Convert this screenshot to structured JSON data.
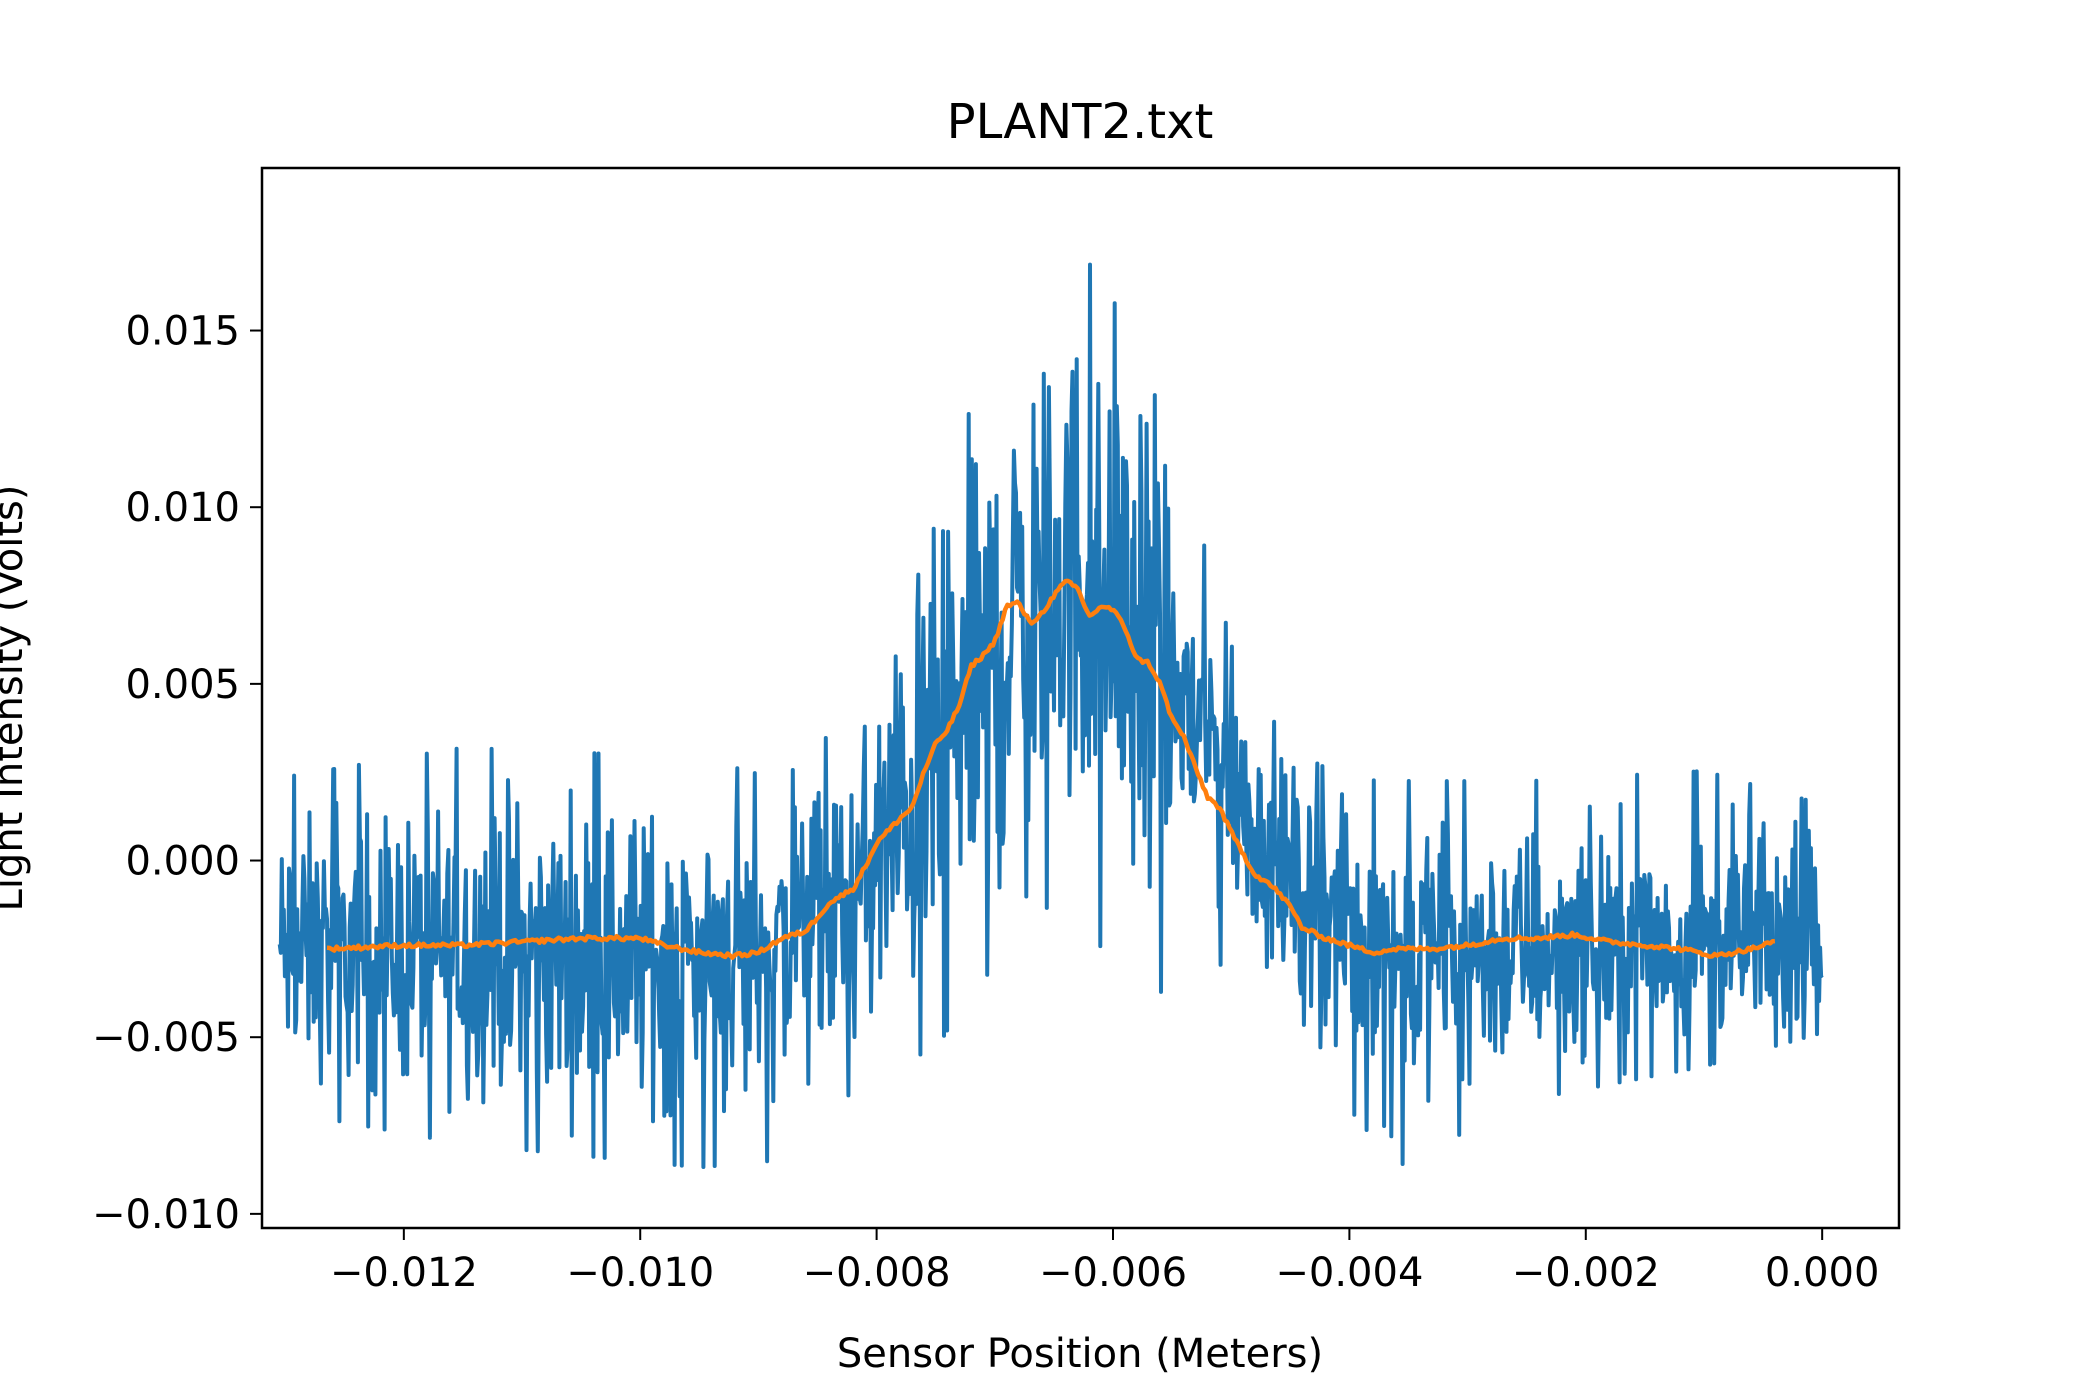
{
  "chart_data": {
    "type": "line",
    "title": "PLANT2.txt",
    "xlabel": "Sensor Position (Meters)",
    "ylabel": "Light Intensity (Volts)",
    "xlim": [
      -0.0132,
      0.00065
    ],
    "ylim": [
      -0.0104,
      0.0196
    ],
    "xticks": [
      -0.012,
      -0.01,
      -0.008,
      -0.006,
      -0.004,
      -0.002,
      0.0
    ],
    "xtick_labels": [
      "−0.012",
      "−0.010",
      "−0.008",
      "−0.006",
      "−0.004",
      "−0.002",
      "0.000"
    ],
    "yticks": [
      -0.01,
      -0.005,
      0.0,
      0.005,
      0.01,
      0.015
    ],
    "ytick_labels": [
      "−0.010",
      "−0.005",
      "0.000",
      "0.005",
      "0.010",
      "0.015"
    ],
    "grid": false,
    "colors": {
      "raw": "#1f77b4",
      "smoothed": "#ff7f0e"
    },
    "series": [
      {
        "style": "raw-noisy",
        "x_range": [
          -0.01305,
          0.0
        ],
        "envelope_x": [
          -0.01305,
          -0.0115,
          -0.0095,
          -0.0088,
          -0.0082,
          -0.0078,
          -0.0075,
          -0.0071,
          -0.0068,
          -0.0065,
          -0.0063,
          -0.0061,
          -0.0059,
          -0.0057,
          -0.0055,
          -0.0052,
          -0.0049,
          -0.0046,
          -0.0043,
          -0.004,
          -0.0036,
          -0.0025,
          -0.001,
          0.0
        ],
        "envelope_mean": [
          -0.0027,
          -0.0026,
          -0.0027,
          -0.0022,
          -0.0012,
          0.0008,
          0.003,
          0.005,
          0.0068,
          0.0075,
          0.0079,
          0.0075,
          0.0072,
          0.006,
          0.0052,
          0.0035,
          0.0018,
          0.0,
          -0.0011,
          -0.0018,
          -0.0025,
          -0.0026,
          -0.0025,
          -0.0024
        ],
        "envelope_max": [
          0.0026,
          0.0035,
          0.0032,
          0.0025,
          0.0045,
          0.0095,
          0.0115,
          0.016,
          0.0165,
          0.017,
          0.0183,
          0.0165,
          0.016,
          0.0145,
          0.011,
          0.009,
          0.005,
          0.004,
          0.003,
          0.0025,
          0.0025,
          0.0025,
          0.0028,
          0.0018
        ],
        "envelope_min": [
          -0.0073,
          -0.0083,
          -0.009,
          -0.0088,
          -0.0068,
          -0.006,
          -0.0058,
          -0.0035,
          -0.005,
          -0.001,
          -0.0015,
          -0.003,
          -0.0045,
          -0.005,
          -0.0035,
          -0.003,
          -0.0037,
          -0.0055,
          -0.0062,
          -0.0073,
          -0.009,
          -0.007,
          -0.006,
          -0.005
        ]
      },
      {
        "style": "smoothed",
        "x": [
          -0.01265,
          -0.012,
          -0.0115,
          -0.011,
          -0.0105,
          -0.01,
          -0.0098,
          -0.0095,
          -0.0092,
          -0.009,
          -0.0088,
          -0.0086,
          -0.0084,
          -0.0082,
          -0.0081,
          -0.008,
          -0.0078,
          -0.0077,
          -0.0076,
          -0.0075,
          -0.0074,
          -0.0073,
          -0.0072,
          -0.0071,
          -0.007,
          -0.0069,
          -0.0068,
          -0.0067,
          -0.0066,
          -0.0065,
          -0.0064,
          -0.0063,
          -0.0062,
          -0.0061,
          -0.006,
          -0.0059,
          -0.0058,
          -0.0057,
          -0.0056,
          -0.0055,
          -0.0054,
          -0.0053,
          -0.0052,
          -0.0051,
          -0.005,
          -0.0049,
          -0.0048,
          -0.0047,
          -0.0046,
          -0.0045,
          -0.0044,
          -0.0042,
          -0.004,
          -0.0038,
          -0.0036,
          -0.0033,
          -0.003,
          -0.0027,
          -0.0024,
          -0.0021,
          -0.0018,
          -0.0015,
          -0.0012,
          -0.0009,
          -0.0006,
          -0.0004
        ],
        "y": [
          -0.0025,
          -0.0024,
          -0.0024,
          -0.0023,
          -0.0022,
          -0.0022,
          -0.0024,
          -0.0026,
          -0.0027,
          -0.0026,
          -0.0022,
          -0.002,
          -0.0012,
          -0.0008,
          -0.0002,
          0.0005,
          0.0012,
          0.0015,
          0.0025,
          0.0033,
          0.0037,
          0.0044,
          0.0055,
          0.0058,
          0.0062,
          0.0072,
          0.0073,
          0.0067,
          0.007,
          0.0075,
          0.0079,
          0.0077,
          0.0069,
          0.0072,
          0.0071,
          0.0066,
          0.0057,
          0.0056,
          0.005,
          0.004,
          0.0035,
          0.0026,
          0.0018,
          0.0015,
          0.0008,
          0.0002,
          -0.0004,
          -0.0006,
          -0.0009,
          -0.0013,
          -0.0019,
          -0.0022,
          -0.0024,
          -0.0026,
          -0.0025,
          -0.0025,
          -0.0024,
          -0.0022,
          -0.0022,
          -0.0021,
          -0.0023,
          -0.0024,
          -0.0025,
          -0.0027,
          -0.0025,
          -0.0023
        ]
      }
    ]
  }
}
